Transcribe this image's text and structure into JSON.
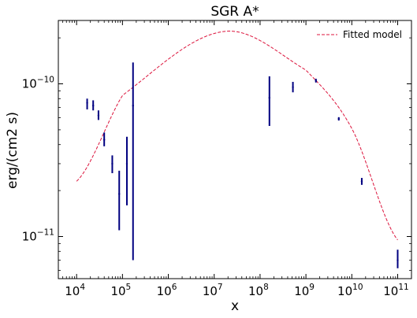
{
  "chart_data": {
    "type": "scatter",
    "title": "SGR A*",
    "xlabel": "x",
    "ylabel": "erg/(cm2 s)",
    "xscale": "log",
    "yscale": "log",
    "xlim": [
      4000.0,
      200000000000.0
    ],
    "ylim": [
      5.3e-12,
      2.6e-10
    ],
    "grid": false,
    "legend_position": "top-right",
    "x_ticks": [
      {
        "base": "10",
        "exp": "4",
        "value": 10000.0
      },
      {
        "base": "10",
        "exp": "5",
        "value": 100000.0
      },
      {
        "base": "10",
        "exp": "6",
        "value": 1000000.0
      },
      {
        "base": "10",
        "exp": "7",
        "value": 10000000.0
      },
      {
        "base": "10",
        "exp": "8",
        "value": 100000000.0
      },
      {
        "base": "10",
        "exp": "9",
        "value": 1000000000.0
      },
      {
        "base": "10",
        "exp": "10",
        "value": 10000000000.0
      },
      {
        "base": "10",
        "exp": "11",
        "value": 100000000000.0
      }
    ],
    "y_ticks": [
      {
        "base": "10",
        "exp": "−11",
        "value": 1e-11
      },
      {
        "base": "10",
        "exp": "−10",
        "value": 1e-10
      }
    ],
    "data_points": {
      "color": "#000080",
      "points": [
        {
          "x": 17000.0,
          "y": 7.5e-11,
          "ylo": 6.8e-11,
          "yhi": 8e-11
        },
        {
          "x": 23000.0,
          "y": 7.2e-11,
          "ylo": 6.7e-11,
          "yhi": 7.8e-11
        },
        {
          "x": 30000.0,
          "y": 6.2e-11,
          "ylo": 5.8e-11,
          "yhi": 6.7e-11
        },
        {
          "x": 40000.0,
          "y": 4.3e-11,
          "ylo": 3.9e-11,
          "yhi": 4.8e-11
        },
        {
          "x": 60000.0,
          "y": 3e-11,
          "ylo": 2.6e-11,
          "yhi": 3.4e-11
        },
        {
          "x": 85000.0,
          "y": 1.9e-11,
          "ylo": 1.1e-11,
          "yhi": 2.7e-11
        },
        {
          "x": 125000.0,
          "y": 3e-11,
          "ylo": 1.6e-11,
          "yhi": 4.5e-11
        },
        {
          "x": 170000.0,
          "y": 7.2e-11,
          "ylo": 7e-12,
          "yhi": 1.38e-10
        },
        {
          "x": 160000000.0,
          "y": 8.1e-11,
          "ylo": 5.3e-11,
          "yhi": 1.12e-10
        },
        {
          "x": 520000000.0,
          "y": 9.5e-11,
          "ylo": 8.8e-11,
          "yhi": 1.03e-10
        },
        {
          "x": 1650000000.0,
          "y": 1.05e-10,
          "ylo": 1.02e-10,
          "yhi": 1.08e-10
        },
        {
          "x": 5200000000.0,
          "y": 5.9e-11,
          "ylo": 5.75e-11,
          "yhi": 6.05e-11
        },
        {
          "x": 16500000000.0,
          "y": 2.3e-11,
          "ylo": 2.18e-11,
          "yhi": 2.42e-11
        },
        {
          "x": 100000000000.0,
          "y": 7e-12,
          "ylo": 6.2e-12,
          "yhi": 8.2e-12
        }
      ]
    },
    "fitted_model": {
      "name": "Fitted model",
      "color": "#dc143c",
      "style": "dashed",
      "x": [
        10000.0,
        100000.0,
        16000000.0,
        1000000000.0,
        10000000000.0,
        100000000000.0
      ],
      "y": [
        2.3e-11,
        8.4e-11,
        2.2e-10,
        1.23e-10,
        5.1e-11,
        9.5e-12
      ]
    }
  }
}
